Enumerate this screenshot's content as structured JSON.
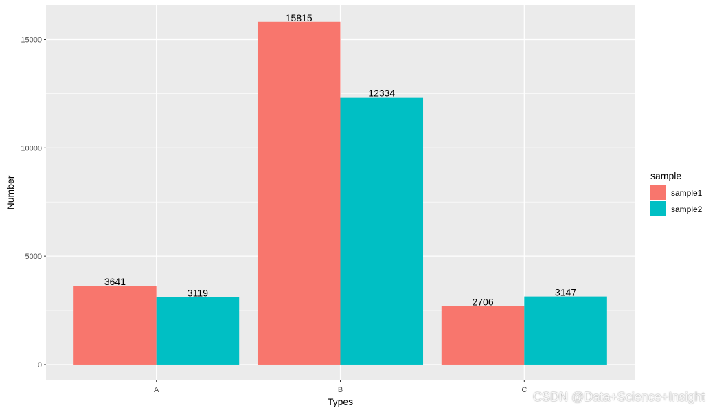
{
  "chart_data": {
    "type": "bar",
    "categories": [
      "A",
      "B",
      "C"
    ],
    "series": [
      {
        "name": "sample1",
        "values": [
          3641,
          15815,
          2706
        ]
      },
      {
        "name": "sample2",
        "values": [
          3119,
          12334,
          3147
        ]
      }
    ],
    "xlabel": "Types",
    "ylabel": "Number",
    "ylim": [
      -730,
      16600
    ],
    "yticks": [
      0,
      5000,
      10000,
      15000
    ],
    "ytick_labels": [
      "0",
      "5000",
      "10000",
      "15000"
    ],
    "legend_title": "sample",
    "legend_position": "right",
    "grid": true,
    "colors": {
      "sample1": "#F8766D",
      "sample2": "#00BFC4",
      "panel": "#EBEBEB",
      "grid": "#FFFFFF"
    }
  },
  "watermark": "CSDN @Data+Science+Insight"
}
